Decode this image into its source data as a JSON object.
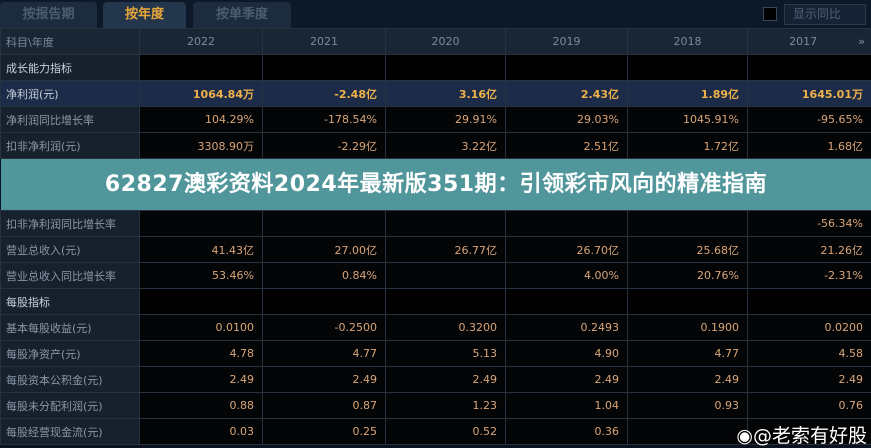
{
  "tabs": [
    {
      "label": "按报告期"
    },
    {
      "label": "按年度",
      "active": true
    },
    {
      "label": "按单季度"
    }
  ],
  "show_yoy": {
    "label": "显示同比",
    "checked": false
  },
  "table": {
    "header_label": "科目\\年度",
    "years": [
      "2022",
      "2021",
      "2020",
      "2019",
      "2018",
      "2017"
    ],
    "rows": [
      {
        "label": "成长能力指标",
        "type": "sec",
        "values": [
          "",
          "",
          "",
          "",
          "",
          ""
        ]
      },
      {
        "label": "净利润(元)",
        "type": "hl",
        "values": [
          "1064.84万",
          "-2.48亿",
          "3.16亿",
          "2.43亿",
          "1.89亿",
          "1645.01万"
        ]
      },
      {
        "label": "净利润同比增长率",
        "type": "row",
        "values": [
          "104.29%",
          "-178.54%",
          "29.91%",
          "29.03%",
          "1045.91%",
          "-95.65%"
        ]
      },
      {
        "label": "扣非净利润(元)",
        "type": "row",
        "values": [
          "3308.90万",
          "-2.29亿",
          "3.22亿",
          "2.51亿",
          "1.72亿",
          "1.68亿"
        ]
      },
      {
        "label": "扣非净利润同比增长率",
        "type": "row",
        "values": [
          "",
          "",
          "",
          "",
          "",
          "-56.34%"
        ]
      },
      {
        "label": "营业总收入(元)",
        "type": "row",
        "values": [
          "41.43亿",
          "27.00亿",
          "26.77亿",
          "26.70亿",
          "25.68亿",
          "21.26亿"
        ]
      },
      {
        "label": "营业总收入同比增长率",
        "type": "row",
        "values": [
          "53.46%",
          "0.84%",
          "",
          "4.00%",
          "20.76%",
          "-2.31%"
        ]
      },
      {
        "label": "每股指标",
        "type": "sec",
        "values": [
          "",
          "",
          "",
          "",
          "",
          ""
        ]
      },
      {
        "label": "基本每股收益(元)",
        "type": "row",
        "values": [
          "0.0100",
          "-0.2500",
          "0.3200",
          "0.2493",
          "0.1900",
          "0.0200"
        ]
      },
      {
        "label": "每股净资产(元)",
        "type": "row",
        "values": [
          "4.78",
          "4.77",
          "5.13",
          "4.90",
          "4.77",
          "4.58"
        ]
      },
      {
        "label": "每股资本公积金(元)",
        "type": "row",
        "values": [
          "2.49",
          "2.49",
          "2.49",
          "2.49",
          "2.49",
          "2.49"
        ]
      },
      {
        "label": "每股未分配利润(元)",
        "type": "row",
        "values": [
          "0.88",
          "0.87",
          "1.23",
          "1.04",
          "0.93",
          "0.76"
        ]
      },
      {
        "label": "每股经营现金流(元)",
        "type": "row",
        "values": [
          "0.03",
          "0.25",
          "0.52",
          "0.36",
          "",
          ""
        ]
      }
    ]
  },
  "banner": {
    "title": "62827澳彩资料2024年最新版351期：引领彩市风向的精准指南"
  },
  "watermark": {
    "text": "@老索有好股",
    "icon": "weibo-icon"
  },
  "colors": {
    "highlight": "#f0b14a",
    "value": "#d9a579",
    "banner": "#5096a0"
  }
}
